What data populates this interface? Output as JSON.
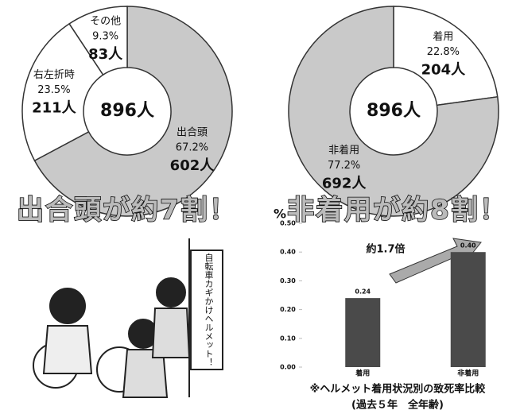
{
  "chart_data": [
    {
      "type": "donut",
      "title": "出合頭が約7割！",
      "center_label": "896人",
      "categories": [
        "出合頭",
        "右左折時",
        "その他"
      ],
      "values": [
        67.2,
        23.5,
        9.3
      ],
      "value_labels": [
        "67.2%",
        "23.5%",
        "9.3%"
      ],
      "counts": [
        602,
        211,
        83
      ],
      "count_labels": [
        "602人",
        "211人",
        "83人"
      ],
      "colors": [
        "#c9c9c9",
        "#ffffff",
        "#ffffff"
      ]
    },
    {
      "type": "donut",
      "title": "非着用が約8割！",
      "center_label": "896人",
      "categories": [
        "着用",
        "非着用"
      ],
      "values": [
        22.8,
        77.2
      ],
      "value_labels": [
        "22.8%",
        "77.2%"
      ],
      "counts": [
        204,
        692
      ],
      "count_labels": [
        "204人",
        "692人"
      ],
      "colors": [
        "#ffffff",
        "#c9c9c9"
      ]
    },
    {
      "type": "bar",
      "title": "※ヘルメット着用状況別の致死率比較",
      "subtitle": "(過去５年　全年齢)",
      "y_label": "%",
      "annotation": "約1.7倍",
      "categories": [
        "着用",
        "非着用"
      ],
      "values": [
        0.24,
        0.4
      ],
      "value_labels": [
        "0.24",
        "0.40"
      ],
      "color": "#4a4a4a",
      "ylim": [
        0,
        0.5
      ],
      "yticks": [
        {
          "value": 0,
          "label": "0.00"
        },
        {
          "value": 0.1,
          "label": "0.10"
        },
        {
          "value": 0.2,
          "label": "0.20"
        },
        {
          "value": 0.3,
          "label": "0.30"
        },
        {
          "value": 0.4,
          "label": "0.40"
        },
        {
          "value": 0.5,
          "label": "0.50"
        }
      ]
    }
  ],
  "sign_text": "自転車カギかけヘルメット！"
}
